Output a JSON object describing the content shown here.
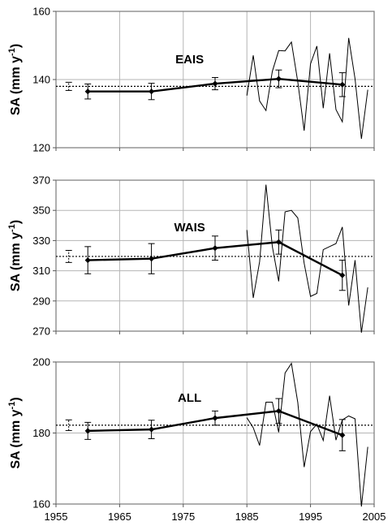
{
  "chart_data": [
    {
      "type": "line",
      "title": "EAIS",
      "ylabel": "SA (mm y",
      "ylabel_sup": "-1",
      "ylabel_close": ")",
      "xlim": [
        1955,
        2005
      ],
      "ylim": [
        120,
        160
      ],
      "yticks": [
        "120",
        "140",
        "160"
      ],
      "reference_line": 138,
      "reference_point": {
        "x": 1957,
        "y": 138,
        "err": 1.2
      },
      "decadal": {
        "x": [
          1960,
          1970,
          1980,
          1990,
          2000
        ],
        "y": [
          136.5,
          136.5,
          138.8,
          140.2,
          138.5
        ],
        "err": [
          2.2,
          2.4,
          1.8,
          2.6,
          3.5
        ]
      },
      "annual": {
        "x": [
          1985,
          1986,
          1987,
          1988,
          1989,
          1990,
          1991,
          1992,
          1993,
          1994,
          1995,
          1996,
          1997,
          1998,
          1999,
          2000,
          2001,
          2002,
          2003,
          2004
        ],
        "y": [
          135.3,
          147.1,
          133.7,
          130.9,
          142.4,
          148.5,
          148.4,
          151.0,
          139.3,
          125.0,
          144.6,
          149.8,
          131.6,
          147.7,
          131.2,
          127.6,
          152.2,
          140.2,
          122.6,
          137.0
        ]
      }
    },
    {
      "type": "line",
      "title": "WAIS",
      "ylabel": "SA (mm y",
      "ylabel_sup": "-1",
      "ylabel_close": ")",
      "xlim": [
        1955,
        2005
      ],
      "ylim": [
        270,
        370
      ],
      "yticks": [
        "270",
        "290",
        "310",
        "330",
        "350",
        "370"
      ],
      "reference_line": 319.5,
      "reference_point": {
        "x": 1957,
        "y": 319.5,
        "err": 4.0
      },
      "decadal": {
        "x": [
          1960,
          1970,
          1980,
          1990,
          2000
        ],
        "y": [
          317,
          318,
          325,
          329,
          307
        ],
        "err": [
          9,
          10,
          8,
          8,
          10
        ]
      },
      "annual": {
        "x": [
          1985,
          1986,
          1987,
          1988,
          1989,
          1990,
          1991,
          1992,
          1993,
          1994,
          1995,
          1996,
          1997,
          1998,
          1999,
          2000,
          2001,
          2002,
          2003,
          2004
        ],
        "y": [
          337,
          292,
          316,
          367,
          326,
          303,
          349,
          350,
          345,
          315,
          293,
          295,
          324,
          326,
          328,
          339,
          287,
          317,
          269,
          299
        ]
      }
    },
    {
      "type": "line",
      "title": "ALL",
      "ylabel": "SA (mm y",
      "ylabel_sup": "-1",
      "ylabel_close": ")",
      "xlim": [
        1955,
        2005
      ],
      "ylim": [
        160,
        200
      ],
      "yticks": [
        "160",
        "180",
        "200"
      ],
      "xticks": [
        "1955",
        "1965",
        "1975",
        "1985",
        "1995",
        "2005"
      ],
      "reference_line": 182.2,
      "reference_point": {
        "x": 1957,
        "y": 182.2,
        "err": 1.5
      },
      "decadal": {
        "x": [
          1960,
          1970,
          1980,
          1990,
          2000
        ],
        "y": [
          180.6,
          181.0,
          184.2,
          186.2,
          179.4
        ],
        "err": [
          2.4,
          2.6,
          2.0,
          3.5,
          4.4
        ]
      },
      "annual": {
        "x": [
          1985,
          1986,
          1987,
          1988,
          1989,
          1990,
          1991,
          1992,
          1993,
          1994,
          1995,
          1996,
          1997,
          1998,
          1999,
          2000,
          2001,
          2002,
          2003,
          2004
        ],
        "y": [
          184.3,
          181.5,
          176.5,
          188.7,
          188.7,
          180.2,
          196.9,
          199.6,
          188.6,
          170.4,
          180.4,
          182.5,
          177.9,
          190.5,
          178.0,
          183.7,
          184.8,
          184.0,
          159.3,
          176.1
        ]
      }
    }
  ]
}
